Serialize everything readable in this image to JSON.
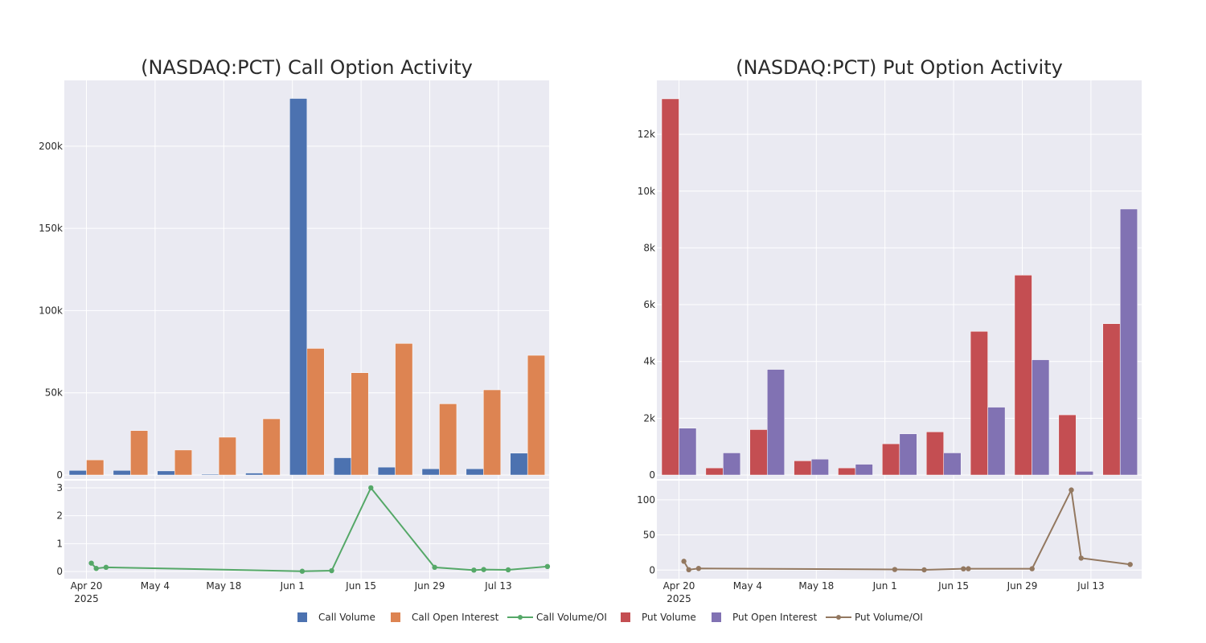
{
  "chart_data": [
    {
      "type": "bar",
      "title": "(NASDAQ:PCT) Call Option Activity",
      "categories": [
        "Apr 21",
        "Apr 28",
        "May 5",
        "May 12",
        "May 19",
        "May 26",
        "Jun 2",
        "Jun 9",
        "Jun 16",
        "Jun 23",
        "Jun 30"
      ],
      "series": [
        {
          "name": "Call Volume",
          "color": "#4c72b0",
          "values": [
            2800,
            2800,
            2500,
            500,
            1200,
            229000,
            10500,
            4800,
            3800,
            3800,
            13300
          ]
        },
        {
          "name": "Call Open Interest",
          "color": "#dd8452",
          "values": [
            9200,
            27000,
            15200,
            23000,
            34200,
            77000,
            62200,
            80000,
            43300,
            51800,
            72800
          ]
        }
      ],
      "ylim": [
        0,
        240000
      ],
      "yticks": [
        0,
        50000,
        100000,
        150000,
        200000
      ],
      "ytick_labels": [
        "0",
        "50k",
        "100k",
        "150k",
        "200k"
      ]
    },
    {
      "type": "line",
      "title": "",
      "series_name": "Call Volume/OI",
      "color": "#55a868",
      "x_days": [
        1,
        2,
        4,
        44,
        50,
        58,
        71,
        79,
        81,
        86
      ],
      "values": [
        0.3,
        0.11,
        0.15,
        0.01,
        0.03,
        3.0,
        0.15,
        0.05,
        0.07,
        0.06
      ],
      "extra_points": [
        {
          "x_days": 94,
          "value": 0.18
        }
      ],
      "ylim": [
        -0.2,
        3.2
      ],
      "yticks": [
        0,
        1,
        2,
        3
      ],
      "ytick_labels": [
        "0",
        "1",
        "2",
        "3"
      ],
      "xticks_days": [
        0,
        14,
        28,
        42,
        56,
        70,
        84
      ],
      "xtick_labels": [
        "Apr 20",
        "May 4",
        "May 18",
        "Jun 1",
        "Jun 15",
        "Jun 29",
        "Jul 13"
      ],
      "xtick_year": "2025"
    },
    {
      "type": "bar",
      "title": "(NASDAQ:PCT) Put Option Activity",
      "categories": [
        "Apr 21",
        "Apr 28",
        "May 5",
        "May 12",
        "May 19",
        "May 26",
        "Jun 2",
        "Jun 9",
        "Jun 16",
        "Jun 23",
        "Jun 30"
      ],
      "series": [
        {
          "name": "Put Volume",
          "color": "#c44e52",
          "values": [
            13250,
            250,
            1600,
            500,
            250,
            1100,
            1520,
            5060,
            7040,
            2120,
            5330
          ]
        },
        {
          "name": "Put Open Interest",
          "color": "#8172b3",
          "values": [
            1650,
            780,
            3720,
            560,
            380,
            1450,
            780,
            2390,
            4060,
            130,
            9370
          ]
        }
      ],
      "ylim": [
        0,
        13900
      ],
      "yticks": [
        0,
        2000,
        4000,
        6000,
        8000,
        10000,
        12000
      ],
      "ytick_labels": [
        "0",
        "2k",
        "4k",
        "6k",
        "8k",
        "10k",
        "12k"
      ]
    },
    {
      "type": "line",
      "title": "",
      "series_name": "Put Volume/OI",
      "color": "#937860",
      "x_days": [
        1,
        2,
        4,
        44,
        50,
        58,
        59,
        72,
        80,
        82,
        92
      ],
      "values": [
        12.5,
        0.5,
        2.3,
        0.8,
        0.3,
        1.8,
        1.9,
        1.9,
        114,
        17,
        8
      ],
      "ylim": [
        -10,
        125
      ],
      "yticks": [
        0,
        50,
        100
      ],
      "ytick_labels": [
        "0",
        "50",
        "100"
      ],
      "xticks_days": [
        0,
        14,
        28,
        42,
        56,
        70,
        84
      ],
      "xtick_labels": [
        "Apr 20",
        "May 4",
        "May 18",
        "Jun 1",
        "Jun 15",
        "Jun 29",
        "Jul 13"
      ],
      "xtick_year": "2025"
    }
  ],
  "legend": [
    {
      "label": "Call Volume",
      "kind": "bar",
      "color": "#4c72b0"
    },
    {
      "label": "Call Open Interest",
      "kind": "bar",
      "color": "#dd8452"
    },
    {
      "label": "Call Volume/OI",
      "kind": "line",
      "color": "#55a868"
    },
    {
      "label": "Put Volume",
      "kind": "bar",
      "color": "#c44e52"
    },
    {
      "label": "Put Open Interest",
      "kind": "bar",
      "color": "#8172b3"
    },
    {
      "label": "Put Volume/OI",
      "kind": "line",
      "color": "#937860"
    }
  ]
}
